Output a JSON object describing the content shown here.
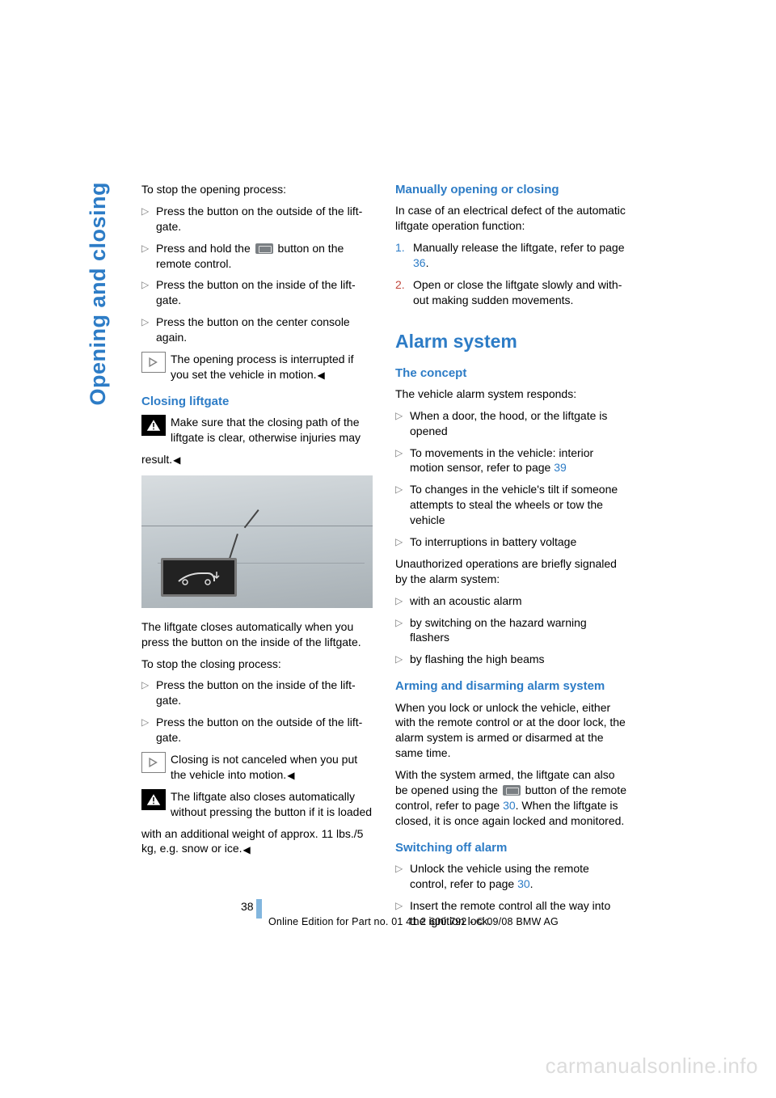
{
  "side_tab": "Opening and closing",
  "page_number": "38",
  "footer": "Online Edition for Part no. 01 41 2 600 792 - © 09/08 BMW AG",
  "watermark": "carmanualsonline.info",
  "left": {
    "intro": "To stop the opening process:",
    "bullets1": [
      "Press the button on the outside of the lift­gate.",
      "Press and hold the",
      "button on the remote control.",
      "Press the button on the inside of the lift­gate.",
      "Press the button on the center console again."
    ],
    "note1": "The opening process is interrupted if you set the vehicle in motion.",
    "h_closing": "Closing liftgate",
    "warn1_a": "Make sure that the closing path of the lift­gate is clear, otherwise injuries may",
    "warn1_b": "result.",
    "after_img1": "The liftgate closes automatically when you press the button on the inside of the liftgate.",
    "after_img2": "To stop the closing process:",
    "bullets2": [
      "Press the button on the inside of the lift­gate.",
      "Press the button on the outside of the lift­gate."
    ],
    "note2": "Closing is not canceled when you put the vehicle into motion.",
    "warn2_a": "The liftgate also closes automatically without pressing the button if it is loaded",
    "warn2_b": "with an additional weight of approx. 11 lbs./5 kg, e.g. snow or ice."
  },
  "right": {
    "h_manual": "Manually opening or closing",
    "manual_intro": "In case of an electrical defect of the automatic liftgate operation function:",
    "steps": [
      {
        "n": "1.",
        "cls": "num-1",
        "t": "Manually release the liftgate, refer to page ",
        "ref": "36",
        "after": "."
      },
      {
        "n": "2.",
        "cls": "num-2",
        "t": "Open or close the liftgate slowly and with­out making sudden movements.",
        "ref": "",
        "after": ""
      }
    ],
    "h_alarm": "Alarm system",
    "h_concept": "The concept",
    "concept_intro": "The vehicle alarm system responds:",
    "concept_list": [
      {
        "t": "When a door, the hood, or the liftgate is opened"
      },
      {
        "t": "To movements in the vehicle: interior motion sensor, refer to page ",
        "ref": "39"
      },
      {
        "t": "To changes in the vehicle's tilt if someone attempts to steal the wheels or tow the vehicle"
      },
      {
        "t": "To interruptions in battery voltage"
      }
    ],
    "unauth": "Unauthorized operations are briefly signaled by the alarm system:",
    "unauth_list": [
      "with an acoustic alarm",
      "by switching on the hazard warning flashers",
      "by flashing the high beams"
    ],
    "h_arm": "Arming and disarming alarm system",
    "arm_p1": "When you lock or unlock the vehicle, either with the remote control or at the door lock, the alarm system is armed or disarmed at the same time.",
    "arm_p2a": "With the system armed, the liftgate can also be opened using the",
    "arm_p2b": "button of the remote con­trol, refer to page ",
    "arm_ref": "30",
    "arm_p2c": ". When the liftgate is closed, it is once again locked and monitored.",
    "h_switch": "Switching off alarm",
    "switch_list": [
      {
        "t": "Unlock the vehicle using the remote control, refer to page ",
        "ref": "30",
        "after": "."
      },
      {
        "t": "Insert the remote control all the way into the ignition lock."
      }
    ]
  }
}
